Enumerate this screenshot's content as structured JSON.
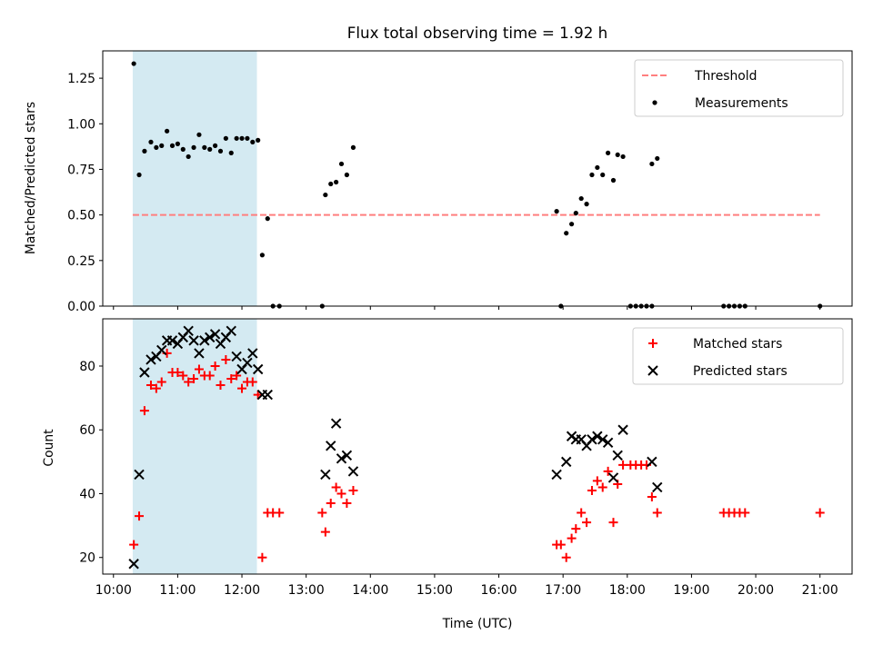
{
  "chart_data": [
    {
      "type": "scatter",
      "title": "Flux total observing time = 1.92 h",
      "xlabel": "",
      "ylabel": "Matched/Predicted stars",
      "xlim": [
        "09:50",
        "21:30"
      ],
      "ylim": [
        0,
        1.4
      ],
      "yticks": [
        "0.00",
        "0.25",
        "0.50",
        "0.75",
        "1.00",
        "1.25"
      ],
      "highlight_span": [
        "10:18",
        "12:14"
      ],
      "highlight_color": "#add8e6",
      "threshold": {
        "name": "Threshold",
        "value": 0.5,
        "x_range": [
          "10:18",
          "21:00"
        ],
        "color": "#ff7f7f",
        "style": "dashed"
      },
      "legend": {
        "placement": "upper right",
        "entries": [
          "Threshold",
          "Measurements"
        ]
      },
      "series": [
        {
          "name": "Measurements",
          "marker": "dot",
          "color": "#000000",
          "points": [
            [
              "10:19",
              1.33
            ],
            [
              "10:24",
              0.72
            ],
            [
              "10:29",
              0.85
            ],
            [
              "10:35",
              0.9
            ],
            [
              "10:40",
              0.87
            ],
            [
              "10:45",
              0.88
            ],
            [
              "10:50",
              0.96
            ],
            [
              "10:55",
              0.88
            ],
            [
              "11:00",
              0.89
            ],
            [
              "11:05",
              0.86
            ],
            [
              "11:10",
              0.82
            ],
            [
              "11:15",
              0.87
            ],
            [
              "11:20",
              0.94
            ],
            [
              "11:25",
              0.87
            ],
            [
              "11:30",
              0.86
            ],
            [
              "11:35",
              0.88
            ],
            [
              "11:40",
              0.85
            ],
            [
              "11:45",
              0.92
            ],
            [
              "11:50",
              0.84
            ],
            [
              "11:55",
              0.92
            ],
            [
              "12:00",
              0.92
            ],
            [
              "12:05",
              0.92
            ],
            [
              "12:10",
              0.9
            ],
            [
              "12:15",
              0.91
            ],
            [
              "12:19",
              0.28
            ],
            [
              "12:24",
              0.48
            ],
            [
              "12:29",
              0.0
            ],
            [
              "12:35",
              0.0
            ],
            [
              "13:15",
              0.0
            ],
            [
              "13:18",
              0.61
            ],
            [
              "13:23",
              0.67
            ],
            [
              "13:28",
              0.68
            ],
            [
              "13:33",
              0.78
            ],
            [
              "13:38",
              0.72
            ],
            [
              "13:44",
              0.87
            ],
            [
              "16:54",
              0.52
            ],
            [
              "16:58",
              0.0
            ],
            [
              "17:03",
              0.4
            ],
            [
              "17:08",
              0.45
            ],
            [
              "17:12",
              0.51
            ],
            [
              "17:17",
              0.59
            ],
            [
              "17:22",
              0.56
            ],
            [
              "17:27",
              0.72
            ],
            [
              "17:32",
              0.76
            ],
            [
              "17:37",
              0.72
            ],
            [
              "17:42",
              0.84
            ],
            [
              "17:47",
              0.69
            ],
            [
              "17:51",
              0.83
            ],
            [
              "17:56",
              0.82
            ],
            [
              "18:03",
              0.0
            ],
            [
              "18:08",
              0.0
            ],
            [
              "18:13",
              0.0
            ],
            [
              "18:18",
              0.0
            ],
            [
              "18:23",
              0.0
            ],
            [
              "18:23",
              0.78
            ],
            [
              "18:28",
              0.81
            ],
            [
              "19:30",
              0.0
            ],
            [
              "19:35",
              0.0
            ],
            [
              "19:40",
              0.0
            ],
            [
              "19:45",
              0.0
            ],
            [
              "19:50",
              0.0
            ],
            [
              "21:00",
              0.0
            ]
          ]
        }
      ]
    },
    {
      "type": "scatter",
      "title": "",
      "xlabel": "Time (UTC)",
      "ylabel": "Count",
      "xlim": [
        "09:50",
        "21:30"
      ],
      "ylim": [
        14.8,
        94.8
      ],
      "yticks": [
        "20",
        "40",
        "60",
        "80"
      ],
      "xticks": [
        "10:00",
        "11:00",
        "12:00",
        "13:00",
        "14:00",
        "15:00",
        "16:00",
        "17:00",
        "18:00",
        "19:00",
        "20:00",
        "21:00"
      ],
      "highlight_span": [
        "10:18",
        "12:14"
      ],
      "highlight_color": "#add8e6",
      "legend": {
        "placement": "upper right",
        "entries": [
          "Matched stars",
          "Predicted stars"
        ]
      },
      "series": [
        {
          "name": "Matched stars",
          "marker": "plus",
          "color": "#ff0000",
          "points": [
            [
              "10:19",
              24
            ],
            [
              "10:24",
              33
            ],
            [
              "10:29",
              66
            ],
            [
              "10:35",
              74
            ],
            [
              "10:40",
              73
            ],
            [
              "10:45",
              75
            ],
            [
              "10:50",
              84
            ],
            [
              "10:55",
              78
            ],
            [
              "11:00",
              78
            ],
            [
              "11:05",
              77
            ],
            [
              "11:10",
              75
            ],
            [
              "11:15",
              76
            ],
            [
              "11:20",
              79
            ],
            [
              "11:25",
              77
            ],
            [
              "11:30",
              77
            ],
            [
              "11:35",
              80
            ],
            [
              "11:40",
              74
            ],
            [
              "11:45",
              82
            ],
            [
              "11:50",
              76
            ],
            [
              "11:55",
              77
            ],
            [
              "12:00",
              73
            ],
            [
              "12:05",
              75
            ],
            [
              "12:10",
              75
            ],
            [
              "12:15",
              71
            ],
            [
              "12:19",
              20
            ],
            [
              "12:24",
              34
            ],
            [
              "12:29",
              34
            ],
            [
              "12:35",
              34
            ],
            [
              "13:15",
              34
            ],
            [
              "13:18",
              28
            ],
            [
              "13:23",
              37
            ],
            [
              "13:28",
              42
            ],
            [
              "13:33",
              40
            ],
            [
              "13:38",
              37
            ],
            [
              "13:44",
              41
            ],
            [
              "16:54",
              24
            ],
            [
              "16:58",
              24
            ],
            [
              "17:03",
              20
            ],
            [
              "17:08",
              26
            ],
            [
              "17:12",
              29
            ],
            [
              "17:17",
              34
            ],
            [
              "17:22",
              31
            ],
            [
              "17:27",
              41
            ],
            [
              "17:32",
              44
            ],
            [
              "17:37",
              42
            ],
            [
              "17:42",
              47
            ],
            [
              "17:47",
              31
            ],
            [
              "17:51",
              43
            ],
            [
              "17:56",
              49
            ],
            [
              "18:03",
              49
            ],
            [
              "18:08",
              49
            ],
            [
              "18:13",
              49
            ],
            [
              "18:18",
              49
            ],
            [
              "18:23",
              39
            ],
            [
              "18:28",
              34
            ],
            [
              "19:30",
              34
            ],
            [
              "19:35",
              34
            ],
            [
              "19:40",
              34
            ],
            [
              "19:45",
              34
            ],
            [
              "19:50",
              34
            ],
            [
              "21:00",
              34
            ]
          ]
        },
        {
          "name": "Predicted stars",
          "marker": "x",
          "color": "#000000",
          "points": [
            [
              "10:19",
              18
            ],
            [
              "10:24",
              46
            ],
            [
              "10:29",
              78
            ],
            [
              "10:35",
              82
            ],
            [
              "10:40",
              83
            ],
            [
              "10:45",
              85
            ],
            [
              "10:50",
              88
            ],
            [
              "10:55",
              88
            ],
            [
              "11:00",
              87
            ],
            [
              "11:05",
              89
            ],
            [
              "11:10",
              91
            ],
            [
              "11:15",
              88
            ],
            [
              "11:20",
              84
            ],
            [
              "11:25",
              88
            ],
            [
              "11:30",
              89
            ],
            [
              "11:35",
              90
            ],
            [
              "11:40",
              87
            ],
            [
              "11:45",
              89
            ],
            [
              "11:50",
              91
            ],
            [
              "11:55",
              83
            ],
            [
              "12:00",
              79
            ],
            [
              "12:05",
              81
            ],
            [
              "12:10",
              84
            ],
            [
              "12:15",
              79
            ],
            [
              "12:19",
              71
            ],
            [
              "12:24",
              71
            ],
            [
              "13:18",
              46
            ],
            [
              "13:23",
              55
            ],
            [
              "13:28",
              62
            ],
            [
              "13:33",
              51
            ],
            [
              "13:38",
              52
            ],
            [
              "13:44",
              47
            ],
            [
              "16:54",
              46
            ],
            [
              "17:03",
              50
            ],
            [
              "17:08",
              58
            ],
            [
              "17:12",
              57
            ],
            [
              "17:17",
              57
            ],
            [
              "17:22",
              55
            ],
            [
              "17:27",
              57
            ],
            [
              "17:32",
              58
            ],
            [
              "17:37",
              57
            ],
            [
              "17:42",
              56
            ],
            [
              "17:47",
              45
            ],
            [
              "17:51",
              52
            ],
            [
              "17:56",
              60
            ],
            [
              "18:23",
              50
            ],
            [
              "18:28",
              42
            ]
          ]
        }
      ]
    }
  ]
}
